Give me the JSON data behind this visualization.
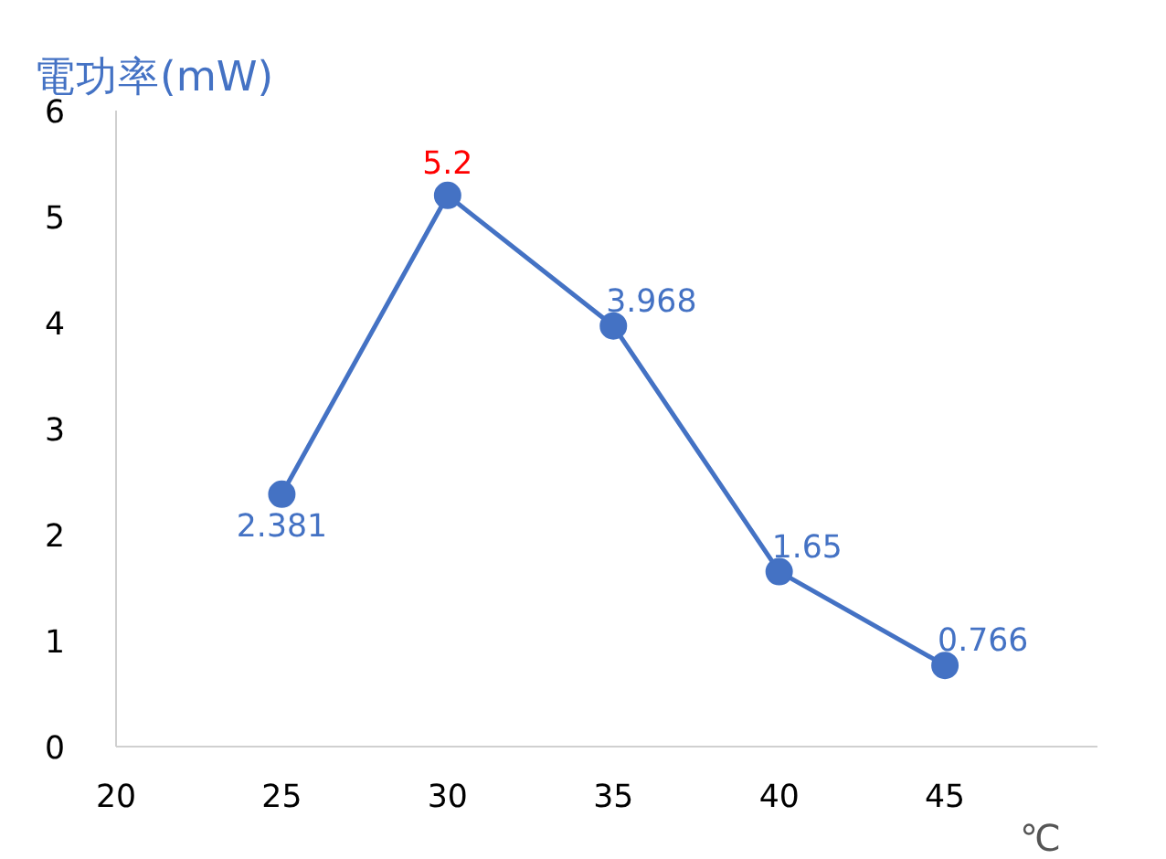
{
  "chart_data": {
    "type": "line",
    "ylabel": "電功率(mW)",
    "xlabel": "℃",
    "x": [
      25,
      30,
      35,
      40,
      45
    ],
    "series": [
      {
        "color": "#4472c4",
        "values": [
          2.381,
          5.2,
          3.968,
          1.65,
          0.766
        ],
        "value_labels": [
          "2.381",
          null,
          "3.968",
          "1.65",
          "0.766"
        ]
      }
    ],
    "annotations": [
      {
        "text": "5.2",
        "x": 30,
        "y": 5.2
      }
    ],
    "xlim": [
      20,
      49.6
    ],
    "xticks": [
      20,
      25,
      30,
      35,
      40,
      45
    ],
    "ylim": [
      0,
      6
    ],
    "yticks": [
      0,
      1,
      2,
      3,
      4,
      5,
      6
    ],
    "grid": false,
    "marker": "circle",
    "line_style": "solid"
  }
}
